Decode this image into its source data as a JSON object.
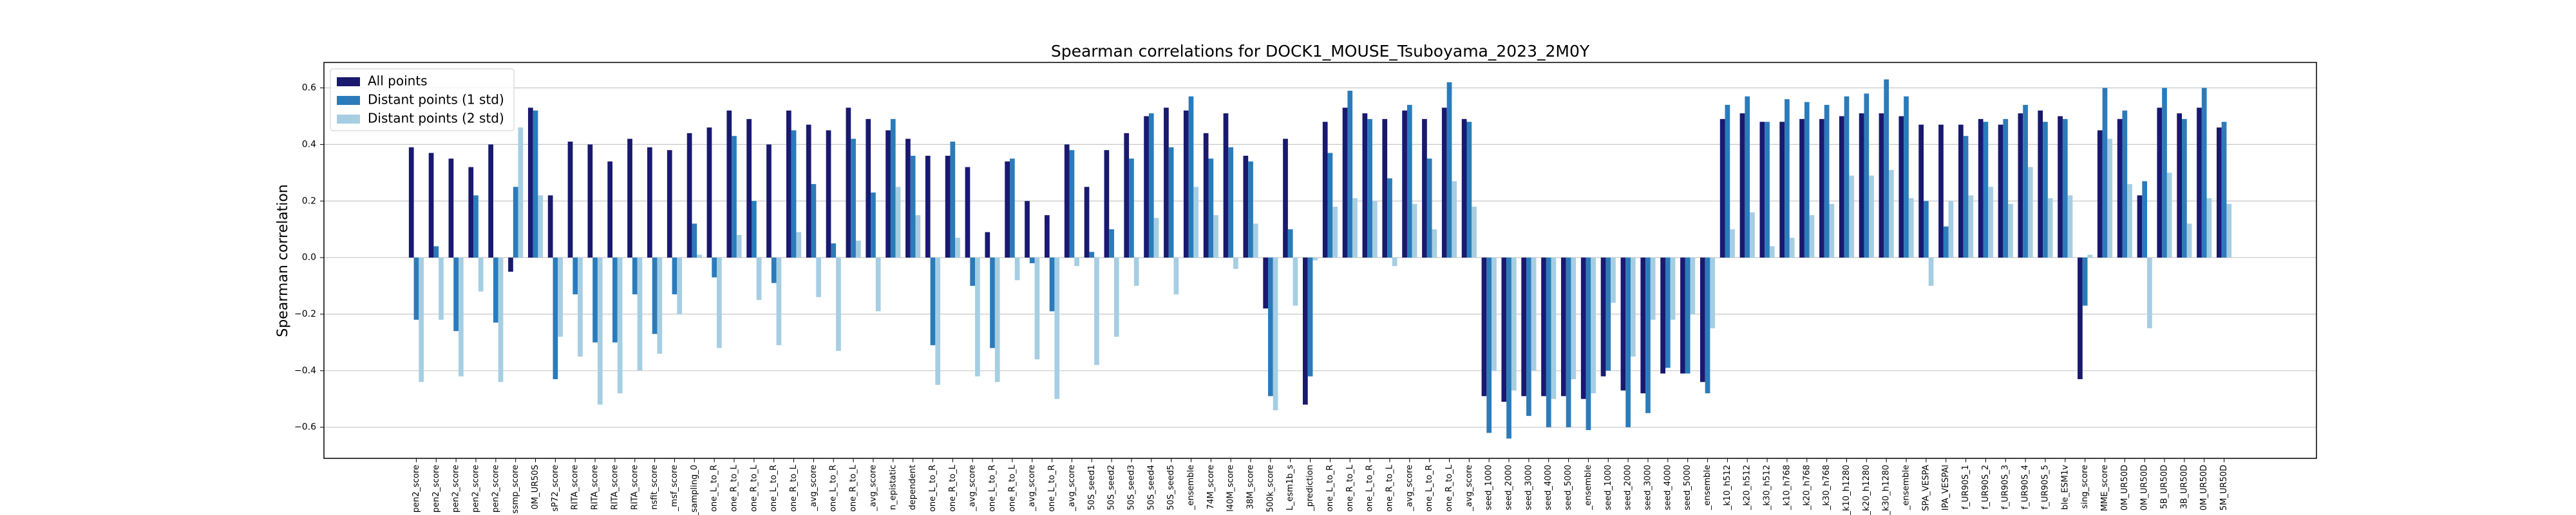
{
  "chart_data": {
    "type": "bar",
    "title": "Spearman correlations for DOCK1_MOUSE_Tsuboyama_2023_2M0Y",
    "ylabel": "Spearman correlation",
    "grid": true,
    "legend": "upper left",
    "ylim": [
      -0.71,
      0.69
    ],
    "yticks": [
      {
        "value": -0.6,
        "label": "−0.6"
      },
      {
        "value": -0.4,
        "label": "−0.4"
      },
      {
        "value": -0.2,
        "label": "−0.2"
      },
      {
        "value": 0,
        "label": "0.0"
      },
      {
        "value": 0.2,
        "label": "0.2"
      },
      {
        "value": 0.4,
        "label": "0.4"
      },
      {
        "value": 0.6,
        "label": "0.6"
      }
    ],
    "categories": [
      "pen2_score",
      "pen2_score",
      "pen2_score",
      "pen2_score",
      "pen2_score",
      "ssmp_score",
      "0M_UR50S",
      "sP72_score",
      "RITA_score",
      "RITA_score",
      "RITA_score",
      "RITA_score",
      "nsfit_score",
      "_msf_score",
      "t_sampling_0",
      "one_L_to_R",
      "one_R_to_L",
      "one_R_to_L",
      "one_L_to_R",
      "one_R_to_L",
      "_avg_score",
      "one_L_to_R",
      "one_R_to_L",
      "_avg_score",
      "n_epistatic",
      "dependent",
      "one_L_to_R",
      "one_R_to_L",
      "_avg_score",
      "one_L_to_R",
      "one_R_to_L",
      "_avg_score",
      "one_L_to_R",
      "_avg_score",
      "50S_seed1",
      "50S_seed2",
      "50S_seed3",
      "50S_seed4",
      "50S_seed5",
      "_ensemble",
      "74M_score",
      "l40M_score",
      "38M_score",
      "500k_score",
      "L_esm1b_s",
      "_prediction",
      "one_L_to_R",
      "one_R_to_L",
      "one_L_to_R",
      "one_R_to_L",
      "_avg_score",
      "one_L_to_R",
      "one_R_to_L",
      "_avg_score",
      "seed_1000",
      "seed_2000",
      "seed_3000",
      "seed_4000",
      "seed_5000",
      "_ensemble",
      "seed_1000",
      "seed_2000",
      "seed_3000",
      "seed_4000",
      "seed_5000",
      "_ensemble",
      "_k10_h512",
      "_k20_h512",
      "_k30_h512",
      "_k10_h768",
      "_k20_h768",
      "_k30_h768",
      "_k10_h1280",
      "_k20_h1280",
      "_k30_h1280",
      "_ensemble",
      "SPA_VESPA",
      "IPA_VESPAl",
      "f_UR90S_1",
      "f_UR90S_2",
      "f_UR90S_3",
      "f_UR90S_4",
      "f_UR90S_5",
      "ble_ESM1v",
      "sing_score",
      "MME_score",
      "0M_UR50D",
      "0M_UR50D",
      "5B_UR50D",
      "3B_UR50D",
      "0M_UR50D",
      "5M_UR50D"
    ],
    "series": [
      {
        "name": "All points",
        "color": "#191970",
        "values": [
          0.39,
          0.37,
          0.35,
          0.32,
          0.4,
          -0.05,
          0.53,
          0.22,
          0.41,
          0.4,
          0.34,
          0.42,
          0.39,
          0.38,
          0.44,
          0.46,
          0.52,
          0.49,
          0.4,
          0.52,
          0.47,
          0.45,
          0.53,
          0.49,
          0.45,
          0.42,
          0.36,
          0.36,
          0.32,
          0.09,
          0.34,
          0.2,
          0.15,
          0.4,
          0.25,
          0.38,
          0.44,
          0.5,
          0.53,
          0.52,
          0.44,
          0.51,
          0.36,
          -0.18,
          0.42,
          -0.52,
          0.48,
          0.53,
          0.51,
          0.49,
          0.52,
          0.49,
          0.53,
          0.49,
          -0.49,
          -0.51,
          -0.49,
          -0.49,
          -0.49,
          -0.5,
          -0.42,
          -0.47,
          -0.48,
          -0.41,
          -0.41,
          -0.44,
          0.49,
          0.51,
          0.48,
          0.48,
          0.49,
          0.49,
          0.5,
          0.51,
          0.51,
          0.5,
          0.47,
          0.47,
          0.47,
          0.49,
          0.47,
          0.51,
          0.52,
          0.5,
          -0.43,
          0.45,
          0.49,
          0.22,
          0.53,
          0.51,
          0.53,
          0.46
        ]
      },
      {
        "name": "Distant points (1 std)",
        "color": "#2b7bba",
        "values": [
          -0.22,
          0.04,
          -0.26,
          0.22,
          -0.23,
          0.25,
          0.52,
          -0.43,
          -0.13,
          -0.3,
          -0.3,
          -0.13,
          -0.27,
          -0.13,
          0.12,
          -0.07,
          0.43,
          0.2,
          -0.09,
          0.45,
          0.26,
          0.05,
          0.42,
          0.23,
          0.49,
          0.36,
          -0.31,
          0.41,
          -0.1,
          -0.32,
          0.35,
          -0.02,
          -0.19,
          0.38,
          0.02,
          0.1,
          0.35,
          0.51,
          0.39,
          0.57,
          0.35,
          0.39,
          0.34,
          -0.49,
          0.1,
          -0.42,
          0.37,
          0.59,
          0.49,
          0.28,
          0.54,
          0.35,
          0.62,
          0.48,
          -0.62,
          -0.64,
          -0.56,
          -0.6,
          -0.6,
          -0.61,
          -0.4,
          -0.6,
          -0.55,
          -0.39,
          -0.41,
          -0.48,
          0.54,
          0.57,
          0.48,
          0.56,
          0.55,
          0.54,
          0.57,
          0.58,
          0.63,
          0.57,
          0.2,
          0.11,
          0.43,
          0.48,
          0.49,
          0.54,
          0.48,
          0.49,
          -0.17,
          0.6,
          0.52,
          0.27,
          0.6,
          0.49,
          0.6,
          0.48
        ]
      },
      {
        "name": "Distant points (2 std)",
        "color": "#a6cee3",
        "values": [
          -0.44,
          -0.22,
          -0.42,
          -0.12,
          -0.44,
          0.46,
          0.22,
          -0.28,
          -0.35,
          -0.52,
          -0.48,
          -0.4,
          -0.34,
          -0.2,
          0.01,
          -0.32,
          0.08,
          -0.15,
          -0.31,
          0.09,
          -0.14,
          -0.33,
          0.06,
          -0.19,
          0.25,
          0.15,
          -0.45,
          0.07,
          -0.42,
          -0.44,
          -0.08,
          -0.36,
          -0.5,
          -0.03,
          -0.38,
          -0.28,
          -0.1,
          0.14,
          -0.13,
          0.25,
          0.15,
          -0.04,
          0.12,
          -0.54,
          -0.17,
          -0.01,
          0.18,
          0.21,
          0.2,
          -0.03,
          0.19,
          0.1,
          0.27,
          0.18,
          -0.4,
          -0.47,
          -0.4,
          -0.5,
          -0.43,
          -0.48,
          -0.16,
          -0.35,
          -0.22,
          -0.22,
          -0.2,
          -0.25,
          0.1,
          0.16,
          0.04,
          0.07,
          0.15,
          0.19,
          0.29,
          0.29,
          0.31,
          0.21,
          -0.1,
          0.2,
          0.22,
          0.25,
          0.19,
          0.32,
          0.21,
          0.22,
          0.01,
          0.42,
          0.26,
          -0.25,
          0.3,
          0.12,
          0.21,
          0.19
        ]
      }
    ]
  }
}
